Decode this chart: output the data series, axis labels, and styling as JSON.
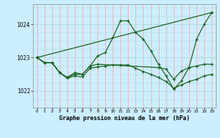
{
  "title": "Graphe pression niveau de la mer (hPa)",
  "background_color": "#cceeff",
  "grid_color_v": "#ff9999",
  "grid_color_h": "#aadddd",
  "line_color": "#1a5c1a",
  "marker_color": "#1a5c1a",
  "xlim": [
    -0.5,
    23.5
  ],
  "ylim": [
    1021.5,
    1024.6
  ],
  "yticks": [
    1022,
    1023,
    1024
  ],
  "xticks": [
    0,
    1,
    2,
    3,
    4,
    5,
    6,
    7,
    8,
    9,
    10,
    11,
    12,
    13,
    14,
    15,
    16,
    17,
    18,
    19,
    20,
    21,
    22,
    23
  ],
  "series": [
    {
      "x": [
        0,
        1,
        2,
        3,
        4,
        5,
        6,
        7,
        8,
        9,
        10,
        11,
        12,
        13,
        14,
        15,
        16,
        17,
        18,
        19,
        20,
        21,
        22,
        23
      ],
      "y": [
        1023.0,
        1022.85,
        1022.85,
        1022.55,
        1022.4,
        1022.55,
        1022.5,
        1022.75,
        1023.05,
        1023.15,
        1023.6,
        1024.1,
        1024.1,
        1023.75,
        1023.55,
        1023.2,
        1022.8,
        1022.45,
        1022.05,
        1022.3,
        1022.7,
        1023.55,
        1024.0,
        1024.35
      ]
    },
    {
      "x": [
        0,
        1,
        2,
        3,
        4,
        5,
        6,
        7,
        8,
        16,
        17,
        18,
        19,
        20,
        21,
        22,
        23
      ],
      "y": [
        1023.0,
        1022.85,
        1022.85,
        1022.55,
        1022.4,
        1022.5,
        1022.5,
        1022.75,
        1022.8,
        1022.7,
        1022.65,
        1022.35,
        1022.6,
        1022.7,
        1022.75,
        1022.8,
        1022.8
      ]
    },
    {
      "x": [
        0,
        1,
        2,
        3,
        4,
        5,
        6,
        7,
        8,
        9,
        10,
        11,
        12,
        13,
        14,
        15,
        16,
        17,
        18,
        19,
        20,
        21,
        22,
        23
      ],
      "y": [
        1023.0,
        1022.85,
        1022.85,
        1022.55,
        1022.38,
        1022.45,
        1022.42,
        1022.68,
        1022.72,
        1022.75,
        1022.78,
        1022.78,
        1022.78,
        1022.68,
        1022.58,
        1022.5,
        1022.4,
        1022.28,
        1022.08,
        1022.18,
        1022.28,
        1022.35,
        1022.45,
        1022.5
      ]
    },
    {
      "x": [
        0,
        23
      ],
      "y": [
        1023.0,
        1024.35
      ]
    }
  ]
}
